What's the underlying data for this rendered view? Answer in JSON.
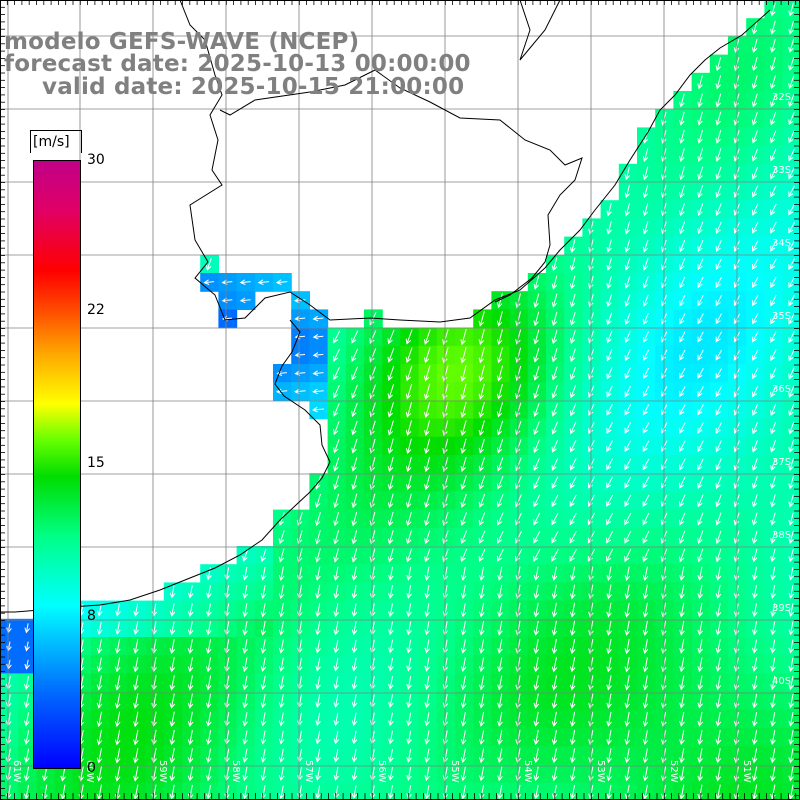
{
  "title": {
    "line1": "modelo GEFS-WAVE (NCEP)",
    "line2": "forecast date: 2025-10-13 00:00:00",
    "line3": "valid date: 2025-10-15 21:00:00"
  },
  "colorbar": {
    "unit": "[m/s]",
    "ticks": [
      "30",
      "22",
      "15",
      "8",
      "0"
    ],
    "min": 0,
    "max": 30
  },
  "grid": {
    "lat_labels": [
      "32S",
      "33S",
      "34S",
      "35S",
      "36S",
      "37S",
      "38S",
      "39S",
      "40S"
    ],
    "lon_labels": [
      "61W",
      "60W",
      "59W",
      "58W",
      "57W",
      "56W",
      "55W",
      "54W",
      "53W",
      "52W",
      "51W"
    ]
  },
  "colors": {
    "coast": "#000000",
    "gridline": "#808080",
    "title_text": "#808080",
    "arrows": "#ffffff",
    "land": "#ffffff"
  },
  "field": {
    "variable": "wind speed",
    "unit": "m/s",
    "typical_range_offshore": [
      8,
      13
    ],
    "typical_range_estuary": [
      3,
      6
    ],
    "dominant_direction": "toward south-southwest"
  }
}
